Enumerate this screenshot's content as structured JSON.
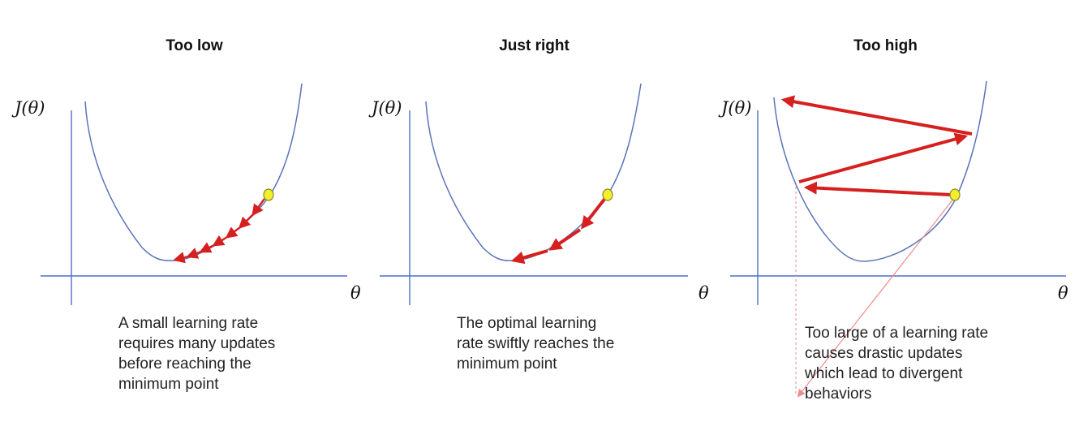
{
  "panels": [
    {
      "title": "Too low",
      "y_label": "J(θ)",
      "x_label": "θ",
      "step_size": "small",
      "caption": [
        "A small learning rate",
        "requires many updates",
        "before reaching the",
        "minimum point"
      ]
    },
    {
      "title": "Just right",
      "y_label": "J(θ)",
      "x_label": "θ",
      "step_size": "optimal",
      "caption": [
        "The optimal learning",
        "rate swiftly reaches the",
        "minimum point"
      ]
    },
    {
      "title": "Too high",
      "y_label": "J(θ)",
      "x_label": "θ",
      "step_size": "large",
      "caption": [
        "Too large of a learning rate",
        "causes drastic updates",
        "which lead to divergent",
        "behaviors"
      ]
    }
  ],
  "colors": {
    "axis": "#4d6fc4",
    "curve": "#5a74b8",
    "arrow": "#d62020",
    "start_point": "#f4ef2a"
  }
}
